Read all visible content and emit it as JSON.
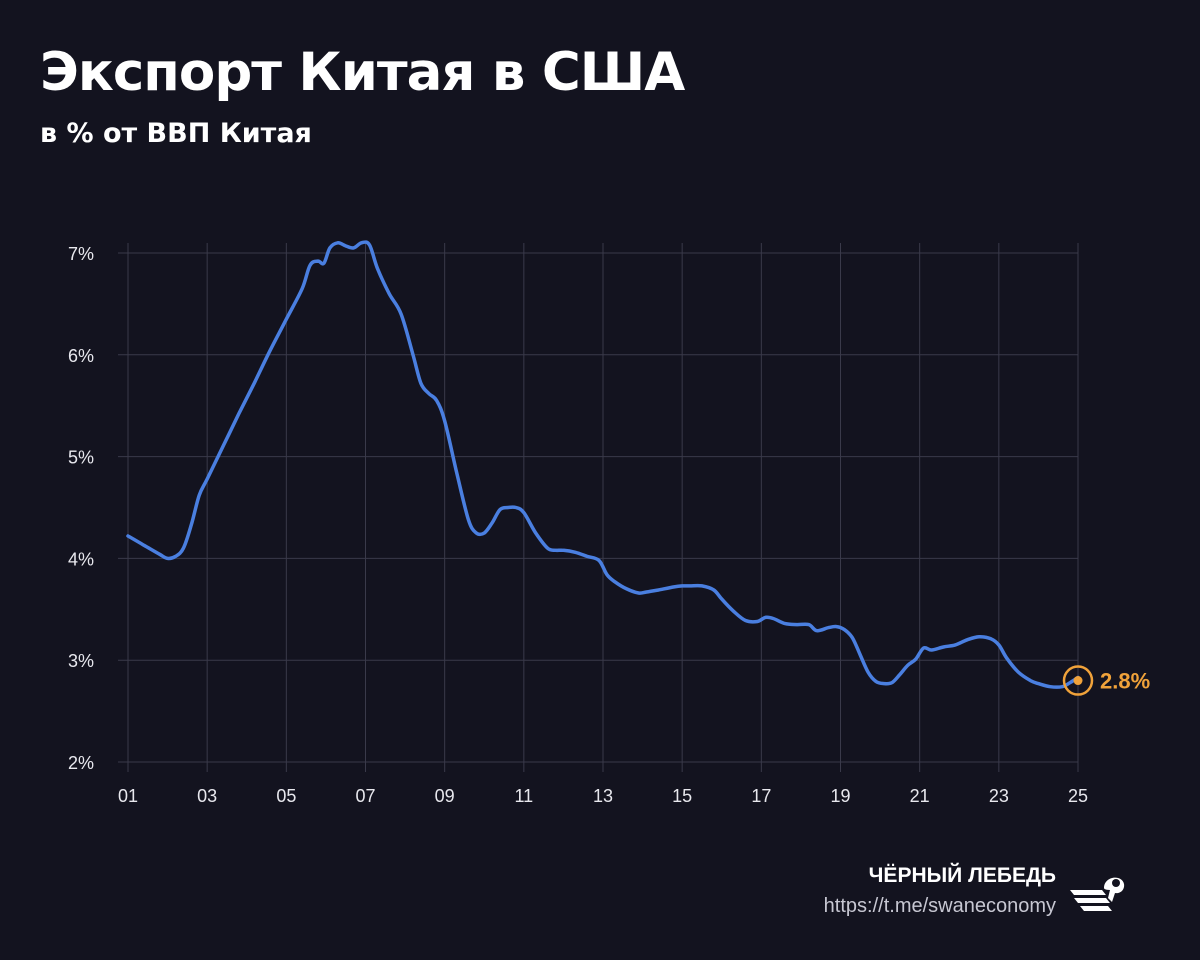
{
  "header": {
    "title": "Экспорт Китая в США",
    "subtitle": "в % от ВВП Китая"
  },
  "brand": {
    "name": "ЧЁРНЫЙ ЛЕБЕДЬ",
    "url": "https://t.me/swaneconomy",
    "logo_icon": "swan-logo-icon"
  },
  "colors": {
    "background": "#13131f",
    "line": "#4a7fe0",
    "highlight": "#f0a23a",
    "grid": "#3a3a4a",
    "axis_text": "#e8e8ee"
  },
  "chart_data": {
    "type": "line",
    "title": "Экспорт Китая в США",
    "subtitle": "в % от ВВП Китая",
    "xlabel": "",
    "ylabel": "",
    "x_ticks": [
      "01",
      "03",
      "05",
      "07",
      "09",
      "11",
      "13",
      "15",
      "17",
      "19",
      "21",
      "23",
      "25"
    ],
    "y_ticks": [
      "2%",
      "3%",
      "4%",
      "5%",
      "6%",
      "7%"
    ],
    "xlim": [
      2001,
      2025
    ],
    "ylim": [
      2,
      7
    ],
    "grid": true,
    "series": [
      {
        "x": [
          2001.0,
          2001.4,
          2001.8,
          2002.0,
          2002.2,
          2002.4,
          2002.6,
          2002.8,
          2003.0,
          2003.4,
          2003.8,
          2004.2,
          2004.6,
          2005.0,
          2005.4,
          2005.6,
          2005.8,
          2005.95,
          2006.1,
          2006.3,
          2006.5,
          2006.7,
          2006.9,
          2007.1,
          2007.3,
          2007.6,
          2007.9,
          2008.2,
          2008.4,
          2008.6,
          2008.8,
          2009.0,
          2009.3,
          2009.6,
          2009.8,
          2010.0,
          2010.2,
          2010.4,
          2010.6,
          2010.8,
          2011.0,
          2011.3,
          2011.6,
          2011.8,
          2012.0,
          2012.3,
          2012.6,
          2012.9,
          2013.1,
          2013.3,
          2013.6,
          2013.9,
          2014.1,
          2014.4,
          2014.8,
          2015.0,
          2015.2,
          2015.5,
          2015.8,
          2016.0,
          2016.3,
          2016.6,
          2016.9,
          2017.1,
          2017.3,
          2017.6,
          2017.9,
          2018.2,
          2018.4,
          2018.7,
          2018.9,
          2019.1,
          2019.3,
          2019.5,
          2019.7,
          2019.9,
          2020.1,
          2020.3,
          2020.5,
          2020.7,
          2020.9,
          2021.1,
          2021.3,
          2021.6,
          2021.9,
          2022.2,
          2022.5,
          2022.8,
          2023.0,
          2023.2,
          2023.5,
          2023.8,
          2024.0,
          2024.3,
          2024.6,
          2024.8,
          2025.0
        ],
        "y": [
          4.22,
          4.13,
          4.04,
          4.0,
          4.02,
          4.1,
          4.33,
          4.62,
          4.78,
          5.1,
          5.42,
          5.73,
          6.05,
          6.35,
          6.65,
          6.88,
          6.92,
          6.9,
          7.05,
          7.1,
          7.07,
          7.05,
          7.1,
          7.08,
          6.85,
          6.6,
          6.4,
          6.0,
          5.72,
          5.62,
          5.55,
          5.35,
          4.85,
          4.38,
          4.25,
          4.25,
          4.35,
          4.48,
          4.5,
          4.5,
          4.45,
          4.25,
          4.1,
          4.08,
          4.08,
          4.06,
          4.02,
          3.98,
          3.84,
          3.77,
          3.7,
          3.66,
          3.67,
          3.69,
          3.72,
          3.73,
          3.73,
          3.73,
          3.69,
          3.6,
          3.48,
          3.39,
          3.38,
          3.42,
          3.41,
          3.36,
          3.35,
          3.35,
          3.29,
          3.32,
          3.33,
          3.3,
          3.22,
          3.05,
          2.88,
          2.79,
          2.77,
          2.78,
          2.86,
          2.95,
          3.01,
          3.12,
          3.1,
          3.13,
          3.15,
          3.2,
          3.23,
          3.21,
          3.15,
          3.02,
          2.88,
          2.8,
          2.77,
          2.74,
          2.74,
          2.78,
          2.83
        ]
      }
    ],
    "annotations": [
      {
        "x": 2025.0,
        "y": 2.8,
        "label": "2.8%"
      }
    ]
  }
}
